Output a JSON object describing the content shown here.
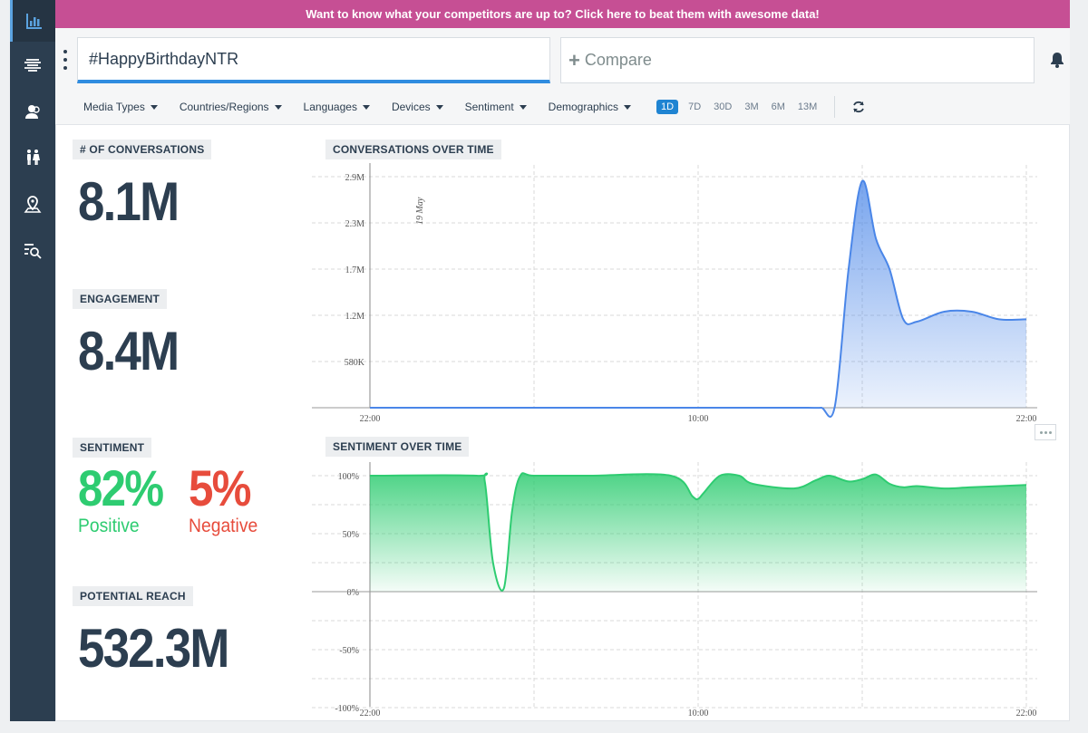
{
  "banner": {
    "text": "Want to know what your competitors are up to? Click here to beat them with awesome data!"
  },
  "search": {
    "query": "#HappyBirthdayNTR",
    "compare_placeholder": "Compare"
  },
  "filters": [
    "Media Types",
    "Countries/Regions",
    "Languages",
    "Devices",
    "Sentiment",
    "Demographics"
  ],
  "ranges": [
    "1D",
    "7D",
    "30D",
    "3M",
    "6M",
    "13M"
  ],
  "active_range": "1D",
  "sidebar": {
    "icons": [
      "bar-chart-icon",
      "wave-lines-icon",
      "users-icon",
      "people-icon",
      "map-pin-icon",
      "list-search-icon"
    ]
  },
  "metrics": {
    "conversations": {
      "label": "# OF CONVERSATIONS",
      "value": "8.1M"
    },
    "engagement": {
      "label": "ENGAGEMENT",
      "value": "8.4M"
    },
    "sentiment": {
      "label": "SENTIMENT",
      "positive_value": "82%",
      "positive_label": "Positive",
      "negative_value": "5%",
      "negative_label": "Negative"
    },
    "reach": {
      "label": "POTENTIAL REACH",
      "value": "532.3M"
    }
  },
  "colors": {
    "banner": "#c64f94",
    "sidebar": "#2c3e50",
    "accent": "#2f8ce0",
    "positive": "#2ecc71",
    "negative": "#e74c3c",
    "conversation_line": "#4a86e8"
  },
  "chart_data": [
    {
      "type": "area",
      "title": "CONVERSATIONS OVER TIME",
      "annotation": "19 May",
      "xlabel": "",
      "ylabel": "",
      "x_ticks": [
        "22:00",
        "10:00",
        "22:00"
      ],
      "y_ticks": [
        "580K",
        "1.2M",
        "1.7M",
        "2.3M",
        "2.9M"
      ],
      "ylim": [
        0,
        2900000
      ],
      "x_hours": [
        0,
        3,
        6,
        9,
        12,
        14,
        15,
        16,
        16.5,
        17,
        17.5,
        18,
        18.5,
        19,
        19.5,
        20,
        21,
        22,
        23,
        24
      ],
      "values": [
        0,
        0,
        0,
        0,
        0,
        0,
        0,
        0,
        0,
        20000,
        1800000,
        2950000,
        2200000,
        1800000,
        1150000,
        1120000,
        1250000,
        1250000,
        1150000,
        1150000
      ]
    },
    {
      "type": "area",
      "title": "SENTIMENT OVER TIME",
      "xlabel": "",
      "ylabel": "",
      "x_ticks": [
        "22:00",
        "10:00",
        "22:00"
      ],
      "y_ticks": [
        "-100%",
        "-50%",
        "0%",
        "50%",
        "100%"
      ],
      "ylim": [
        -100,
        100
      ],
      "x_hours": [
        0,
        3.9,
        4.2,
        4.5,
        4.9,
        5.2,
        5.5,
        6,
        8,
        11,
        11.8,
        12,
        12.2,
        12.8,
        13.5,
        14,
        15.5,
        16.3,
        16.8,
        17.5,
        18,
        18.5,
        19,
        19.5,
        20,
        21,
        22,
        24
      ],
      "values": [
        100,
        100,
        95,
        25,
        3,
        70,
        100,
        100,
        100,
        100,
        82,
        80,
        85,
        100,
        100,
        93,
        89,
        96,
        100,
        95,
        97,
        101,
        93,
        90,
        91,
        89,
        90,
        92
      ]
    }
  ]
}
